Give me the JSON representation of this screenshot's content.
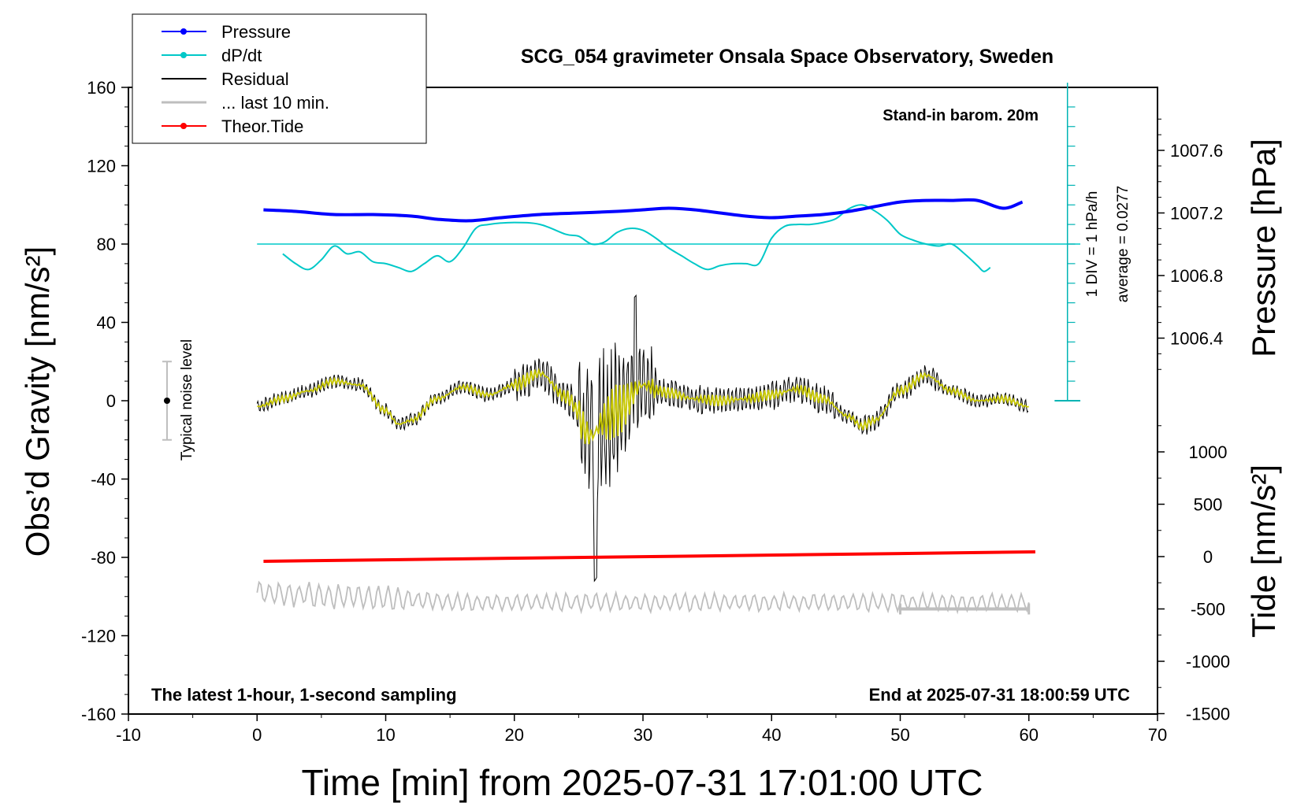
{
  "chart_data": {
    "type": "line",
    "title": "SCG_054 gravimeter Onsala Space Observatory, Sweden",
    "xlabel": "Time [min] from 2025-07-31 17:01:00 UTC",
    "ylabel_left": "Obs’d Gravity [nm/s²]",
    "ylabel_right_top": "Pressure [hPa]",
    "ylabel_right_bottom": "Tide [nm/s²]",
    "xlim": [
      -10,
      70
    ],
    "ylim": [
      -160,
      160
    ],
    "pressure_lim": [
      1006.2,
      1007.8
    ],
    "tide_lim": [
      -1500,
      1500
    ],
    "x_ticks": [
      "-10",
      "0",
      "10",
      "20",
      "30",
      "40",
      "50",
      "60",
      "70"
    ],
    "y_ticks": [
      "160",
      "120",
      "80",
      "40",
      "0",
      "-40",
      "-80",
      "-120",
      "-160"
    ],
    "pressure_ticks": [
      "1007.6",
      "1007.2",
      "1006.8",
      "1006.4"
    ],
    "tide_ticks": [
      "1000",
      "500",
      "0",
      "-500",
      "-1000",
      "-1500"
    ],
    "legend": [
      {
        "label": "Pressure",
        "color": "#0000ff",
        "marker": true
      },
      {
        "label": "dP/dt",
        "color": "#00c8c8",
        "marker": true
      },
      {
        "label": "Residual",
        "color": "#000000",
        "marker": false
      },
      {
        "label": "... last 10 min.",
        "color": "#bebebe",
        "marker": false
      },
      {
        "label": "Theor.Tide",
        "color": "#ff0000",
        "marker": true
      }
    ],
    "annotations": {
      "barometer": "Stand-in barom. 20m",
      "footer_left": "The latest 1-hour, 1-second sampling",
      "footer_right": "End at 2025-07-31 18:00:59 UTC",
      "noise": "Typical noise level",
      "dpdt_scale": "1 DIV = 1 hPa/h",
      "dpdt_average": "average = 0.0277"
    },
    "series": [
      {
        "name": "Pressure",
        "axis": "pressure",
        "color": "#0000ff",
        "x": [
          0.5,
          3,
          6,
          9,
          12,
          14,
          16.5,
          19,
          22,
          25,
          28,
          30,
          32,
          34,
          36,
          38,
          40,
          42,
          44,
          46,
          48,
          50,
          52,
          54,
          56,
          58,
          59.5
        ],
        "y": [
          1007.22,
          1007.21,
          1007.19,
          1007.19,
          1007.18,
          1007.16,
          1007.15,
          1007.17,
          1007.19,
          1007.2,
          1007.21,
          1007.22,
          1007.23,
          1007.22,
          1007.2,
          1007.18,
          1007.17,
          1007.18,
          1007.19,
          1007.21,
          1007.24,
          1007.27,
          1007.28,
          1007.28,
          1007.28,
          1007.23,
          1007.27
        ]
      },
      {
        "name": "dP/dt",
        "axis": "gravity",
        "color": "#00c8c8",
        "x": [
          2,
          3,
          4,
          5,
          6,
          7,
          8,
          9,
          10,
          11,
          12,
          13,
          14,
          15,
          16,
          17,
          18,
          20,
          22,
          24,
          25,
          26,
          27,
          28,
          29,
          30,
          31,
          32,
          33,
          34,
          35,
          36,
          37,
          38,
          39,
          40,
          41,
          42,
          43,
          44,
          45,
          46,
          47,
          48,
          49,
          50,
          51,
          52,
          53,
          54,
          55,
          56,
          56.5,
          57
        ],
        "y": [
          75,
          70,
          67,
          72,
          79,
          75,
          76,
          71,
          70,
          68,
          66,
          70,
          74,
          71,
          78,
          88,
          90,
          91,
          90,
          85,
          84,
          80,
          81,
          86,
          88,
          87,
          83,
          78,
          74,
          70,
          67,
          69,
          70,
          70,
          70,
          83,
          89,
          90,
          90,
          91,
          93,
          98,
          100,
          97,
          92,
          85,
          82,
          80,
          79,
          80,
          75,
          69,
          66,
          68
        ]
      },
      {
        "name": "Residual (smoothed)",
        "axis": "gravity",
        "color": "#c8c800",
        "x": [
          0,
          2,
          4,
          6,
          8,
          10,
          11,
          12,
          14,
          16,
          18,
          20,
          22,
          24,
          26,
          27,
          28,
          30,
          32,
          34,
          36,
          38,
          40,
          42,
          44,
          46,
          47,
          48,
          50,
          52,
          54,
          56,
          58,
          60
        ],
        "y": [
          -3,
          1,
          5,
          10,
          8,
          -5,
          -12,
          -10,
          1,
          7,
          3,
          8,
          14,
          2,
          -18,
          -10,
          -5,
          8,
          4,
          1,
          0,
          1,
          3,
          6,
          1,
          -8,
          -13,
          -10,
          5,
          13,
          5,
          0,
          1,
          -3
        ]
      },
      {
        "name": "Theor.Tide",
        "axis": "tide",
        "color": "#ff0000",
        "x": [
          0.5,
          60.5
        ],
        "y": [
          -45,
          45
        ]
      }
    ],
    "noise_level": {
      "x": -7,
      "y": 0,
      "low": -20,
      "high": 20
    },
    "last_10min_bar": {
      "x0": 50,
      "x1": 60,
      "tide": -500
    }
  }
}
